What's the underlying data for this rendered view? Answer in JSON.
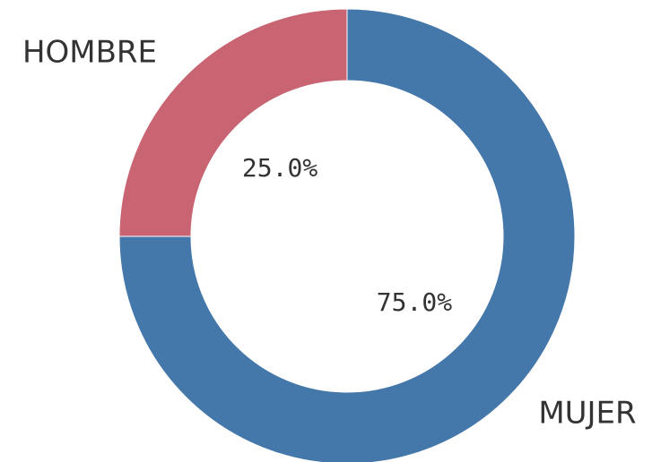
{
  "chart_data": {
    "type": "donut",
    "categories": [
      "MUJER",
      "HOMBRE"
    ],
    "values": [
      75,
      25
    ],
    "value_labels": [
      "75.0%",
      "25.0%"
    ],
    "colors": [
      "#4477aa",
      "#c96473"
    ]
  }
}
